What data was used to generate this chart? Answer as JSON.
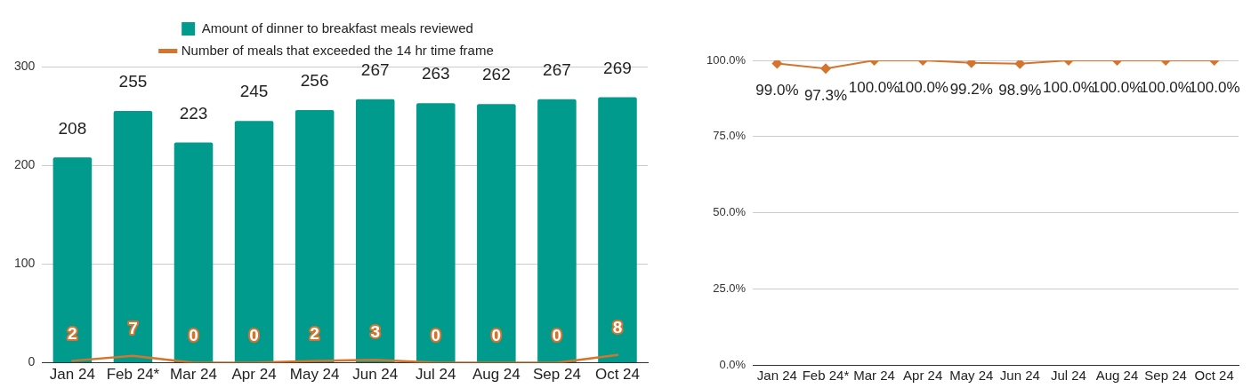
{
  "chart_data": [
    {
      "type": "bar",
      "categories": [
        "Jan 24",
        "Feb 24*",
        "Mar 24",
        "Apr 24",
        "May 24",
        "Jun 24",
        "Jul 24",
        "Aug 24",
        "Sep 24",
        "Oct 24"
      ],
      "series": [
        {
          "name": "Amount of dinner to breakfast meals reviewed",
          "color": "#009b8c",
          "values": [
            208,
            255,
            223,
            245,
            256,
            267,
            263,
            262,
            267,
            269
          ]
        },
        {
          "name": "Number of meals that exceeded the 14 hr time frame",
          "type": "line",
          "color": "#d4752f",
          "values": [
            2,
            7,
            0,
            0,
            2,
            3,
            0,
            0,
            0,
            8
          ]
        }
      ],
      "ylim": [
        0,
        300
      ],
      "yticks": [
        0,
        100,
        200,
        300
      ],
      "grid": "y",
      "legend": "top",
      "data_labels": true,
      "marker": "none"
    },
    {
      "type": "line",
      "categories": [
        "Jan 24",
        "Feb 24*",
        "Mar 24",
        "Apr 24",
        "May 24",
        "Jun 24",
        "Jul 24",
        "Aug 24",
        "Sep 24",
        "Oct 24"
      ],
      "series": [
        {
          "color": "#d4752f",
          "values": [
            99.0,
            97.3,
            100,
            100,
            99.2,
            98.9,
            100,
            100,
            100,
            100
          ],
          "value_labels": [
            "99.0%",
            "97.3%",
            "100.0%",
            "100.0%",
            "99.2%",
            "98.9%",
            "100.0%",
            "100.0%",
            "100.0%",
            "100.0%"
          ]
        }
      ],
      "ylim": [
        0,
        100
      ],
      "yticks": [
        {
          "value": 0,
          "label": "0.0%"
        },
        {
          "value": 25,
          "label": "25.0%"
        },
        {
          "value": 50,
          "label": "50.0%"
        },
        {
          "value": 75,
          "label": "75.0%"
        },
        {
          "value": 100,
          "label": "100.0%"
        }
      ],
      "grid": "y",
      "marker": "diamond"
    }
  ]
}
